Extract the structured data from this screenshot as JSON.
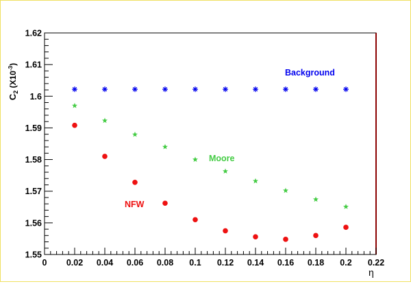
{
  "chart_data": {
    "type": "scatter",
    "xlabel": "η",
    "ylabel_main": "C",
    "ylabel_sub": "2",
    "ylabel_unit": "(X10",
    "ylabel_exp": "-3",
    "ylabel_close": ")",
    "xlim": [
      0,
      0.22
    ],
    "ylim": [
      1.55,
      1.62
    ],
    "x_ticks": [
      "0",
      "0.02",
      "0.04",
      "0.06",
      "0.08",
      "0.1",
      "0.12",
      "0.14",
      "0.16",
      "0.18",
      "0.2",
      "0.22"
    ],
    "y_ticks": [
      "1.55",
      "1.56",
      "1.57",
      "1.58",
      "1.59",
      "1.6",
      "1.61",
      "1.62"
    ],
    "series": [
      {
        "name": "Background",
        "color": "#0000ee",
        "marker": "asterisk",
        "x": [
          0.02,
          0.04,
          0.06,
          0.08,
          0.1,
          0.12,
          0.14,
          0.16,
          0.18,
          0.2
        ],
        "y": [
          1.6022,
          1.6022,
          1.6022,
          1.6022,
          1.6022,
          1.6022,
          1.6022,
          1.6022,
          1.6022,
          1.6022
        ]
      },
      {
        "name": "Moore",
        "color": "#44cc44",
        "marker": "star",
        "x": [
          0.02,
          0.04,
          0.06,
          0.08,
          0.1,
          0.12,
          0.14,
          0.16,
          0.18,
          0.2
        ],
        "y": [
          1.597,
          1.5923,
          1.5879,
          1.584,
          1.58,
          1.5763,
          1.5732,
          1.5702,
          1.5674,
          1.5651
        ]
      },
      {
        "name": "NFW",
        "color": "#ee1111",
        "marker": "circle",
        "x": [
          0.02,
          0.04,
          0.06,
          0.08,
          0.1,
          0.12,
          0.14,
          0.16,
          0.18,
          0.2
        ],
        "y": [
          1.5908,
          1.581,
          1.5728,
          1.5662,
          1.561,
          1.5575,
          1.5556,
          1.5548,
          1.556,
          1.5586
        ]
      }
    ],
    "legend_labels": {
      "background": "Background",
      "moore": "Moore",
      "nfw": "NFW"
    }
  }
}
